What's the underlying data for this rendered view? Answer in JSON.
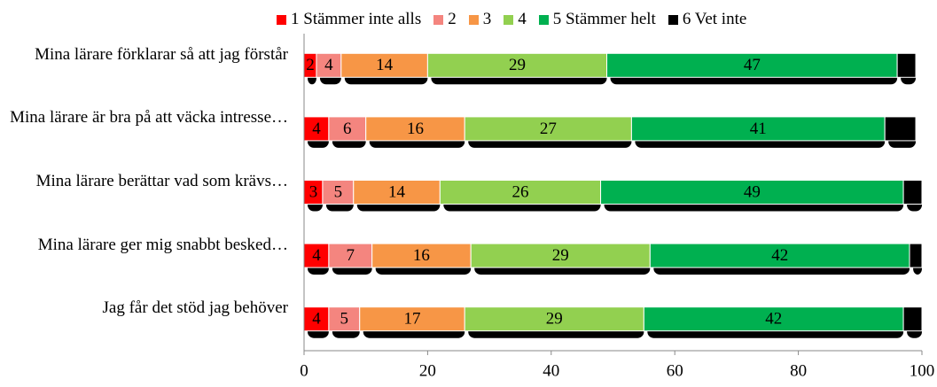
{
  "chart_data": {
    "type": "stacked-bar-horizontal",
    "categories": [
      "Mina lärare förklarar så att jag förstår",
      "Mina lärare är bra på att väcka intresse…",
      "Mina lärare berättar vad som krävs…",
      "Mina lärare ger mig snabbt besked…",
      "Jag får det stöd jag behöver"
    ],
    "series": [
      {
        "name": "1 Stämmer inte alls",
        "color": "#ff0000",
        "values": [
          2,
          4,
          3,
          4,
          4
        ]
      },
      {
        "name": "2",
        "color": "#f4857f",
        "values": [
          4,
          6,
          5,
          7,
          5
        ]
      },
      {
        "name": "3",
        "color": "#f79646",
        "values": [
          14,
          16,
          14,
          16,
          17
        ]
      },
      {
        "name": "4",
        "color": "#92d050",
        "values": [
          29,
          27,
          26,
          29,
          29
        ]
      },
      {
        "name": "5 Stämmer helt",
        "color": "#00b050",
        "values": [
          47,
          41,
          49,
          42,
          42
        ]
      },
      {
        "name": "6 Vet inte",
        "color": "#000000",
        "values": [
          3,
          5,
          3,
          2,
          3
        ]
      }
    ],
    "labeled_series": [
      0,
      1,
      2,
      3,
      4
    ],
    "xlim": [
      0,
      100
    ],
    "xticks": [
      0,
      20,
      40,
      60,
      80,
      100
    ],
    "grid": false
  }
}
